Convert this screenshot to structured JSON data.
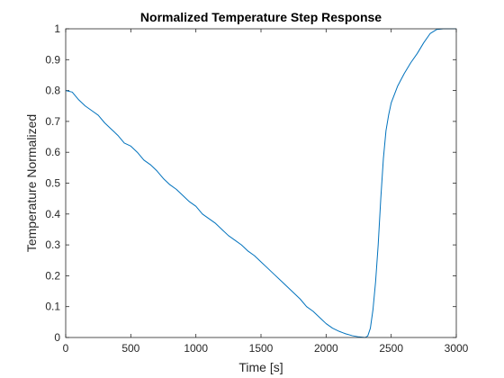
{
  "colors": {
    "series": "#0072bd",
    "axes": "#262626",
    "background": "#ffffff"
  },
  "chart_data": {
    "type": "line",
    "title": "Normalized Temperature Step Response",
    "xlabel": "Time [s]",
    "ylabel": "Temperature Normalized",
    "xlim": [
      0,
      3000
    ],
    "ylim": [
      0,
      1
    ],
    "xticks": [
      0,
      500,
      1000,
      1500,
      2000,
      2500,
      3000
    ],
    "xtick_labels": [
      "0",
      "500",
      "1000",
      "1500",
      "2000",
      "2500",
      "3000"
    ],
    "yticks": [
      0,
      0.1,
      0.2,
      0.3,
      0.4,
      0.5,
      0.6,
      0.7,
      0.8,
      0.9,
      1
    ],
    "ytick_labels": [
      "0",
      "0.1",
      "0.2",
      "0.3",
      "0.4",
      "0.5",
      "0.6",
      "0.7",
      "0.8",
      "0.9",
      "1"
    ],
    "grid": false,
    "box": true,
    "series": [
      {
        "x": [
          0,
          50,
          100,
          150,
          200,
          250,
          300,
          350,
          400,
          450,
          500,
          550,
          600,
          650,
          700,
          750,
          800,
          850,
          900,
          950,
          1000,
          1050,
          1100,
          1150,
          1200,
          1250,
          1300,
          1350,
          1400,
          1450,
          1500,
          1550,
          1600,
          1650,
          1700,
          1750,
          1800,
          1850,
          1900,
          1950,
          2000,
          2050,
          2100,
          2150,
          2200,
          2250,
          2300,
          2320,
          2340,
          2360,
          2380,
          2400,
          2420,
          2440,
          2460,
          2480,
          2500,
          2550,
          2600,
          2650,
          2700,
          2750,
          2800,
          2850,
          2900,
          2950,
          3000
        ],
        "y": [
          0.8,
          0.795,
          0.77,
          0.75,
          0.735,
          0.72,
          0.695,
          0.675,
          0.655,
          0.63,
          0.62,
          0.6,
          0.575,
          0.56,
          0.54,
          0.515,
          0.495,
          0.48,
          0.46,
          0.44,
          0.425,
          0.4,
          0.385,
          0.37,
          0.35,
          0.33,
          0.315,
          0.3,
          0.28,
          0.265,
          0.245,
          0.225,
          0.205,
          0.185,
          0.165,
          0.145,
          0.125,
          0.1,
          0.085,
          0.065,
          0.045,
          0.03,
          0.02,
          0.012,
          0.006,
          0.002,
          0.0,
          0.005,
          0.03,
          0.09,
          0.18,
          0.3,
          0.45,
          0.58,
          0.67,
          0.72,
          0.76,
          0.815,
          0.855,
          0.89,
          0.92,
          0.955,
          0.985,
          0.998,
          1.0,
          1.0,
          1.0
        ]
      }
    ]
  }
}
